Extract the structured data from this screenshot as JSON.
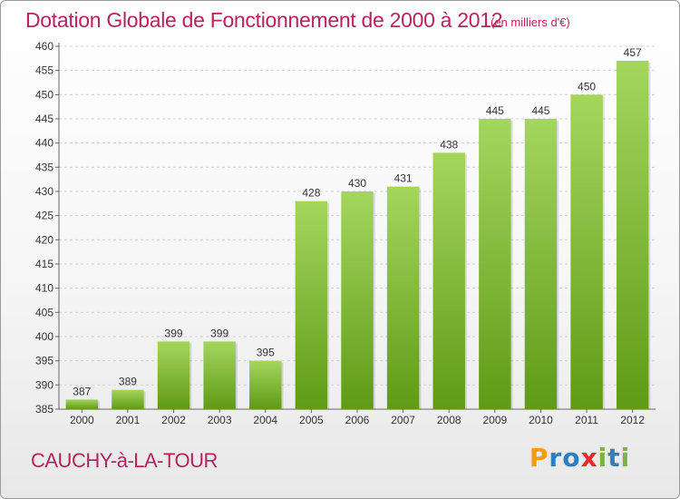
{
  "header": {
    "title": "Dotation Globale de Fonctionnement de 2000 à 2012",
    "subtitle": "(en milliers d'€)"
  },
  "footer": {
    "commune": "CAUCHY-à-LA-TOUR",
    "logo_text": "Proxiti",
    "logo_letters": [
      {
        "char": "P",
        "color": "#f39c12"
      },
      {
        "char": "r",
        "color": "#2d7fc4"
      },
      {
        "char": "o",
        "color": "#2d7fc4"
      },
      {
        "char": "x",
        "color": "#e52b2b"
      },
      {
        "char": "i",
        "color": "#7cb342"
      },
      {
        "char": "t",
        "color": "#2d7fc4"
      },
      {
        "char": "i",
        "color": "#7cb342"
      }
    ]
  },
  "colors": {
    "title": "#b5245f",
    "bar_light": "#a4d65e",
    "bar_dark": "#5f9b16",
    "grid": "#d2d2d2",
    "axis": "#666666"
  },
  "chart_data": {
    "type": "bar",
    "categories": [
      "2000",
      "2001",
      "2002",
      "2003",
      "2004",
      "2005",
      "2006",
      "2007",
      "2008",
      "2009",
      "2010",
      "2011",
      "2012"
    ],
    "values": [
      387,
      389,
      399,
      399,
      395,
      428,
      430,
      431,
      438,
      445,
      445,
      450,
      457
    ],
    "ylim": [
      385,
      460
    ],
    "ytick_step": 5,
    "grid": true,
    "data_labels": true
  }
}
